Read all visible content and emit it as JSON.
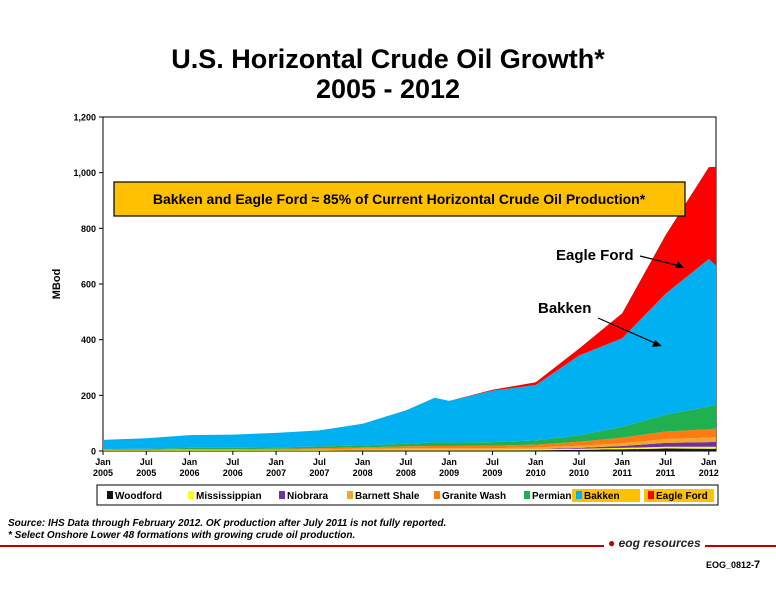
{
  "page": {
    "title_line1": "U.S. Horizontal Crude Oil Growth*",
    "title_line2": "2005 - 2012",
    "source_line1": "Source: IHS Data through February 2012. OK production after July 2011 is not fully reported.",
    "source_line2": "* Select Onshore Lower 48 formations with growing crude oil production.",
    "logo_text": "eog resources",
    "doc_id": "EOG_0812-",
    "page_number": "7"
  },
  "colors": {
    "woodford": "#111111",
    "mississippian": "#ffff00",
    "niobrara": "#7030a0",
    "barnett_shale": "#f0a830",
    "granite_wash": "#ff7a10",
    "permian": "#20b050",
    "bakken": "#00b0f0",
    "eagle_ford": "#ff0000",
    "callout_fill": "#ffc000",
    "accent": "#c00000"
  },
  "chart_data": {
    "type": "area",
    "stacked": true,
    "ylabel": "MBod",
    "ylim": [
      0,
      1200
    ],
    "yticks": [
      0,
      200,
      400,
      600,
      800,
      1000,
      1200
    ],
    "ytick_labels": [
      "0",
      "200",
      "400",
      "600",
      "800",
      "1,000",
      "1,200"
    ],
    "x_start": "2005-01",
    "x_end": "2012-02",
    "xticks": [
      {
        "month": "Jan",
        "year": "2005"
      },
      {
        "month": "Jul",
        "year": "2005"
      },
      {
        "month": "Jan",
        "year": "2006"
      },
      {
        "month": "Jul",
        "year": "2006"
      },
      {
        "month": "Jan",
        "year": "2007"
      },
      {
        "month": "Jul",
        "year": "2007"
      },
      {
        "month": "Jan",
        "year": "2008"
      },
      {
        "month": "Jul",
        "year": "2008"
      },
      {
        "month": "Jan",
        "year": "2009"
      },
      {
        "month": "Jul",
        "year": "2009"
      },
      {
        "month": "Jan",
        "year": "2010"
      },
      {
        "month": "Jul",
        "year": "2010"
      },
      {
        "month": "Jan",
        "year": "2011"
      },
      {
        "month": "Jul",
        "year": "2011"
      },
      {
        "month": "Jan",
        "year": "2012"
      }
    ],
    "x": [
      "2005-01",
      "2005-07",
      "2006-01",
      "2006-07",
      "2007-01",
      "2007-07",
      "2008-01",
      "2008-07",
      "2008-11",
      "2009-01",
      "2009-07",
      "2010-01",
      "2010-07",
      "2011-01",
      "2011-07",
      "2012-01",
      "2012-02"
    ],
    "series": [
      {
        "name": "Woodford",
        "color_key": "woodford",
        "values": [
          1,
          1,
          1,
          1,
          1,
          1,
          2,
          2,
          2,
          2,
          2,
          3,
          4,
          6,
          9,
          8,
          8
        ]
      },
      {
        "name": "Mississippian",
        "color_key": "mississippian",
        "values": [
          2,
          2,
          2,
          2,
          2,
          2,
          2,
          3,
          3,
          3,
          3,
          3,
          4,
          5,
          6,
          7,
          7
        ]
      },
      {
        "name": "Niobrara",
        "color_key": "niobrara",
        "values": [
          0,
          0,
          0,
          0,
          0,
          0,
          0,
          0,
          0,
          0,
          0,
          1,
          3,
          7,
          14,
          17,
          18
        ]
      },
      {
        "name": "Barnett Shale",
        "color_key": "barnett_shale",
        "values": [
          1,
          1,
          2,
          2,
          2,
          3,
          4,
          5,
          5,
          5,
          5,
          6,
          8,
          10,
          14,
          16,
          17
        ]
      },
      {
        "name": "Granite Wash",
        "color_key": "granite_wash",
        "values": [
          1,
          1,
          2,
          2,
          3,
          4,
          5,
          7,
          8,
          8,
          9,
          10,
          14,
          20,
          27,
          30,
          31
        ]
      },
      {
        "name": "Permian",
        "color_key": "permian",
        "values": [
          2,
          3,
          4,
          4,
          5,
          6,
          7,
          9,
          13,
          12,
          13,
          15,
          23,
          39,
          60,
          82,
          85
        ]
      },
      {
        "name": "Bakken",
        "color_key": "bakken",
        "values": [
          33,
          38,
          46,
          48,
          52,
          58,
          78,
          120,
          160,
          150,
          185,
          199,
          287,
          318,
          435,
          530,
          500
        ]
      },
      {
        "name": "Eagle Ford",
        "color_key": "eagle_ford",
        "values": [
          0,
          0,
          0,
          0,
          0,
          0,
          0,
          0,
          0,
          0,
          3,
          10,
          25,
          90,
          210,
          330,
          355
        ]
      }
    ],
    "callout": "Bakken and Eagle Ford ≈ 85% of Current Horizontal Crude Oil Production*",
    "annotations": [
      {
        "label": "Eagle Ford",
        "points_to": "Eagle Ford"
      },
      {
        "label": "Bakken",
        "points_to": "Bakken"
      }
    ],
    "legend_placement": "bottom",
    "grid": false
  }
}
